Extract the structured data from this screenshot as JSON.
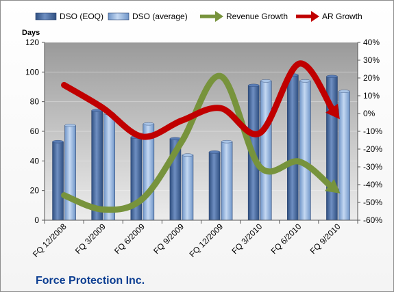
{
  "company": "Force Protection Inc.",
  "chart_data": {
    "type": "bar",
    "categories": [
      "FQ 12/2008",
      "FQ 3/2009",
      "FQ 6/2009",
      "FQ 9/2009",
      "FQ 12/2009",
      "FQ 3/2010",
      "FQ 6/2010",
      "FQ 9/2010"
    ],
    "ylabel": "Days",
    "ylim": [
      0,
      120
    ],
    "y_ticks": [
      "0",
      "20",
      "40",
      "60",
      "80",
      "100",
      "120"
    ],
    "y2lim": [
      -60,
      40
    ],
    "y2_ticks": [
      "-60%",
      "-50%",
      "-40%",
      "-30%",
      "-20%",
      "-10%",
      "0%",
      "10%",
      "20%",
      "30%",
      "40%"
    ],
    "legend_position": "top",
    "series": [
      {
        "name": "DSO (EOQ)",
        "type": "bar",
        "axis": "left",
        "color": "#4a6fa5",
        "values": [
          53,
          74,
          56,
          55,
          46,
          91,
          98,
          97
        ]
      },
      {
        "name": "DSO (average)",
        "type": "bar",
        "axis": "left",
        "color": "#8fb0dc",
        "values": [
          64,
          72,
          65,
          44,
          53,
          94,
          94,
          87
        ]
      },
      {
        "name": "Revenue Growth",
        "type": "line",
        "axis": "right",
        "color": "#77933c",
        "values": [
          -46,
          -54,
          -48,
          -16,
          21,
          -30,
          -27,
          -44
        ]
      },
      {
        "name": "AR Growth",
        "type": "line",
        "axis": "right",
        "color": "#c00000",
        "values": [
          16,
          3,
          -13,
          -4,
          3,
          -11,
          28,
          -2
        ]
      }
    ]
  }
}
